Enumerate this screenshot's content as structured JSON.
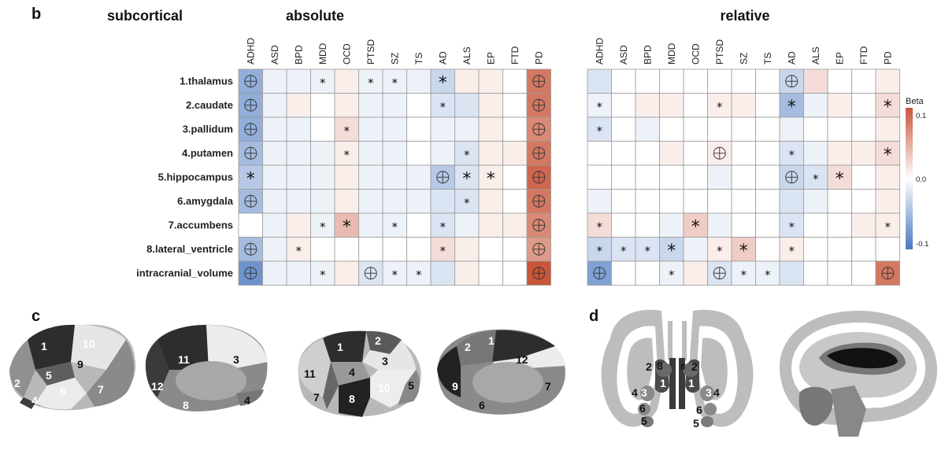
{
  "panel_b": {
    "letter": "b",
    "section_label": "subcortical",
    "columns": [
      "ADHD",
      "ASD",
      "BPD",
      "MDD",
      "OCD",
      "PTSD",
      "SZ",
      "TS",
      "AD",
      "ALS",
      "EP",
      "FTD",
      "PD"
    ],
    "rows": [
      "1.thalamus",
      "2.caudate",
      "3.pallidum",
      "4.putamen",
      "5.hippocampus",
      "6.amygdala",
      "7.accumbens",
      "8.lateral_ventricle",
      "intracranial_volume"
    ],
    "colorbar": {
      "title": "Beta",
      "ticks": [
        "0.1",
        "0.0",
        "-0.1"
      ],
      "range": [
        -0.1,
        0.1
      ],
      "colors": {
        "neg": "#4a78c0",
        "mid": "#ffffff",
        "pos": "#c8563a"
      }
    },
    "legend_meaning": {
      "star": "*",
      "crossed_circle": "⊕"
    }
  },
  "chart_data": [
    {
      "type": "heatmap",
      "title": "absolute",
      "x": [
        "ADHD",
        "ASD",
        "BPD",
        "MDD",
        "OCD",
        "PTSD",
        "SZ",
        "TS",
        "AD",
        "ALS",
        "EP",
        "FTD",
        "PD"
      ],
      "y": [
        "1.thalamus",
        "2.caudate",
        "3.pallidum",
        "4.putamen",
        "5.hippocampus",
        "6.amygdala",
        "7.accumbens",
        "8.lateral_ventricle",
        "intracranial_volume"
      ],
      "values": [
        [
          -0.06,
          -0.01,
          -0.01,
          -0.01,
          0.01,
          -0.01,
          -0.01,
          -0.01,
          -0.03,
          0.01,
          0.01,
          0.0,
          0.08
        ],
        [
          -0.06,
          -0.01,
          0.01,
          0.0,
          0.01,
          -0.01,
          -0.01,
          0.0,
          -0.02,
          -0.02,
          0.01,
          0.0,
          0.08
        ],
        [
          -0.06,
          -0.01,
          -0.01,
          0.0,
          0.02,
          -0.01,
          -0.01,
          0.0,
          -0.01,
          -0.01,
          0.01,
          0.0,
          0.07
        ],
        [
          -0.05,
          -0.01,
          -0.01,
          -0.01,
          0.01,
          -0.01,
          -0.01,
          0.0,
          -0.01,
          -0.02,
          0.01,
          0.01,
          0.08
        ],
        [
          -0.04,
          -0.01,
          -0.01,
          -0.01,
          0.01,
          -0.01,
          -0.01,
          -0.01,
          -0.04,
          -0.02,
          0.01,
          0.0,
          0.09
        ],
        [
          -0.05,
          -0.01,
          -0.01,
          -0.01,
          0.01,
          -0.01,
          -0.01,
          -0.01,
          -0.02,
          -0.02,
          0.01,
          0.0,
          0.08
        ],
        [
          0.0,
          -0.01,
          0.01,
          -0.01,
          0.04,
          -0.01,
          -0.01,
          0.0,
          -0.02,
          -0.01,
          0.01,
          0.01,
          0.07
        ],
        [
          -0.05,
          -0.01,
          0.01,
          0.0,
          0.0,
          0.0,
          0.0,
          0.0,
          0.02,
          0.01,
          0.0,
          0.0,
          0.06
        ],
        [
          -0.08,
          -0.01,
          -0.01,
          -0.01,
          0.01,
          -0.02,
          -0.01,
          -0.01,
          -0.02,
          0.01,
          0.0,
          0.0,
          0.1
        ]
      ],
      "marks": [
        [
          "o",
          "",
          "",
          "*",
          "",
          "*",
          "*",
          "",
          "*L",
          "",
          "",
          "",
          "o"
        ],
        [
          "o",
          "",
          "",
          "",
          "",
          "",
          "",
          "",
          "*",
          "",
          "",
          "",
          "o"
        ],
        [
          "o",
          "",
          "",
          "",
          "*",
          "",
          "",
          "",
          "",
          "",
          "",
          "",
          "o"
        ],
        [
          "o",
          "",
          "",
          "",
          "*",
          "",
          "",
          "",
          "",
          "*",
          "",
          "",
          "o"
        ],
        [
          "*L",
          "",
          "",
          "",
          "",
          "",
          "",
          "",
          "o",
          "*L",
          "*L",
          "",
          "o"
        ],
        [
          "o",
          "",
          "",
          "",
          "",
          "",
          "",
          "",
          "",
          "*",
          "",
          "",
          "o"
        ],
        [
          "",
          "",
          "",
          "*",
          "*L",
          "",
          "*",
          "",
          "*",
          "",
          "",
          "",
          "o"
        ],
        [
          "o",
          "",
          "*",
          "",
          "",
          "",
          "",
          "",
          "*",
          "",
          "",
          "",
          "o"
        ],
        [
          "o",
          "",
          "",
          "*",
          "",
          "o",
          "*",
          "*",
          "",
          "",
          "",
          "",
          "o"
        ]
      ]
    },
    {
      "type": "heatmap",
      "title": "relative",
      "x": [
        "ADHD",
        "ASD",
        "BPD",
        "MDD",
        "OCD",
        "PTSD",
        "SZ",
        "TS",
        "AD",
        "ALS",
        "EP",
        "FTD",
        "PD"
      ],
      "y": [
        "1.thalamus",
        "2.caudate",
        "3.pallidum",
        "4.putamen",
        "5.hippocampus",
        "6.amygdala",
        "7.accumbens",
        "8.lateral_ventricle",
        "intracranial_volume"
      ],
      "values": [
        [
          -0.02,
          0.0,
          0.0,
          0.0,
          0.0,
          0.0,
          0.0,
          0.0,
          -0.03,
          0.02,
          0.0,
          0.0,
          0.01
        ],
        [
          -0.01,
          0.0,
          0.01,
          0.01,
          0.0,
          0.01,
          0.01,
          0.0,
          -0.05,
          -0.01,
          0.01,
          0.0,
          0.02
        ],
        [
          -0.02,
          0.0,
          -0.01,
          0.0,
          0.0,
          0.0,
          0.0,
          0.0,
          -0.01,
          0.0,
          0.0,
          0.0,
          0.01
        ],
        [
          0.0,
          0.0,
          0.0,
          0.01,
          0.0,
          0.01,
          0.0,
          0.0,
          -0.02,
          -0.01,
          0.01,
          0.01,
          0.02
        ],
        [
          0.0,
          0.0,
          0.0,
          0.0,
          0.0,
          -0.01,
          0.0,
          0.0,
          -0.03,
          -0.02,
          0.02,
          0.0,
          0.01
        ],
        [
          -0.01,
          0.0,
          0.0,
          0.0,
          0.0,
          0.0,
          0.0,
          0.0,
          -0.02,
          -0.01,
          0.0,
          0.0,
          0.01
        ],
        [
          0.02,
          0.0,
          0.0,
          -0.01,
          0.03,
          -0.01,
          0.0,
          0.0,
          -0.02,
          0.0,
          0.0,
          0.01,
          0.01
        ],
        [
          -0.03,
          -0.02,
          -0.02,
          -0.03,
          -0.01,
          0.01,
          0.03,
          0.0,
          0.01,
          0.0,
          0.0,
          0.0,
          0.0
        ],
        [
          -0.07,
          0.0,
          0.0,
          -0.01,
          0.01,
          -0.02,
          -0.01,
          -0.01,
          -0.02,
          0.0,
          0.0,
          0.0,
          0.08
        ]
      ],
      "marks": [
        [
          "",
          "",
          "",
          "",
          "",
          "",
          "",
          "",
          "o",
          "",
          "",
          "",
          ""
        ],
        [
          "*",
          "",
          "",
          "",
          "",
          "*",
          "",
          "",
          "*L",
          "",
          "",
          "",
          "*L"
        ],
        [
          "*",
          "",
          "",
          "",
          "",
          "",
          "",
          "",
          "",
          "",
          "",
          "",
          ""
        ],
        [
          "",
          "",
          "",
          "",
          "",
          "o",
          "",
          "",
          "*",
          "",
          "",
          "",
          "*L"
        ],
        [
          "",
          "",
          "",
          "",
          "",
          "",
          "",
          "",
          "o",
          "*",
          "*L",
          "",
          ""
        ],
        [
          "",
          "",
          "",
          "",
          "",
          "",
          "",
          "",
          "",
          "",
          "",
          "",
          ""
        ],
        [
          "*",
          "",
          "",
          "",
          "*L",
          "",
          "",
          "",
          "*",
          "",
          "",
          "",
          "*"
        ],
        [
          "*",
          "*",
          "*",
          "*L",
          "",
          "*",
          "*L",
          "",
          "*",
          "",
          "",
          "",
          ""
        ],
        [
          "o",
          "",
          "",
          "*",
          "",
          "o",
          "*",
          "*",
          "",
          "",
          "",
          "",
          "o"
        ]
      ]
    }
  ],
  "panel_c": {
    "letter": "c",
    "views": [
      {
        "labels": [
          "1",
          "10",
          "9",
          "5",
          "2",
          "6",
          "7",
          "4"
        ]
      },
      {
        "labels": [
          "11",
          "3",
          "12",
          "8",
          "4"
        ]
      },
      {
        "labels": [
          "1",
          "2",
          "3",
          "11",
          "4",
          "10",
          "5",
          "7",
          "8"
        ]
      },
      {
        "labels": [
          "2",
          "1",
          "12",
          "9",
          "7",
          "6"
        ]
      }
    ]
  },
  "panel_d": {
    "letter": "d",
    "coronal_labels": [
      "2",
      "8",
      "8",
      "2",
      "1",
      "1",
      "4",
      "3",
      "3",
      "4",
      "6",
      "6",
      "5",
      "5"
    ]
  }
}
